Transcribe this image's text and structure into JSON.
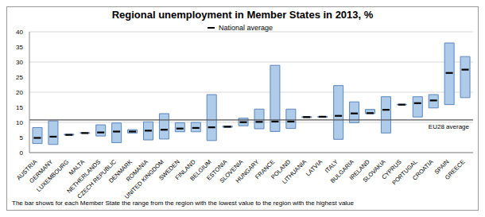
{
  "chart_data": {
    "type": "range_bar",
    "title": "Regional unemployment in Member States in 2013, %",
    "note": "The bar shows for each Member State the range from the region with the lowest value to the region with the highest value",
    "categories": [
      "AUSTRIA",
      "GERMANY",
      "LUXEMBOURG",
      "MALTA",
      "NETHERLANDS",
      "CZECH REPUBLIC",
      "DENMARK",
      "ROMANIA",
      "UNITED KINGDOM",
      "SWEDEN",
      "FINLAND",
      "BELGIUM",
      "ESTONIA",
      "SLOVENIA",
      "HUNGARY",
      "FRANCE",
      "POLAND",
      "LITHUANIA",
      "LATVIA",
      "ITALY",
      "BULGARIA",
      "IRELAND",
      "SLOVAKIA",
      "CYPRUS",
      "PORTUGAL",
      "CROATIA",
      "SPAIN",
      "GREECE"
    ],
    "low": [
      3.0,
      2.7,
      5.8,
      6.4,
      5.5,
      3.3,
      6.5,
      4.2,
      4.5,
      6.9,
      6.9,
      4.0,
      8.4,
      8.9,
      7.9,
      7.0,
      8.0,
      11.6,
      11.7,
      4.4,
      9.9,
      12.9,
      6.5,
      15.8,
      11.8,
      14.8,
      15.9,
      18.2
    ],
    "high": [
      8.3,
      10.5,
      6.1,
      6.6,
      9.2,
      9.8,
      7.6,
      10.2,
      12.9,
      9.9,
      10.0,
      19.2,
      8.8,
      11.4,
      14.4,
      28.9,
      14.4,
      11.9,
      12.0,
      22.2,
      16.8,
      14.3,
      18.5,
      16.0,
      18.5,
      19.2,
      36.3,
      31.8
    ],
    "color": "#aecbea",
    "series": [
      {
        "name": "National average",
        "type": "marker",
        "marker": "dash",
        "color": "#000000",
        "values": [
          4.9,
          5.3,
          5.9,
          6.5,
          6.7,
          7.0,
          7.0,
          7.3,
          7.6,
          8.0,
          8.2,
          8.4,
          8.6,
          10.1,
          10.2,
          10.3,
          10.3,
          11.8,
          11.9,
          12.2,
          13.0,
          13.1,
          14.2,
          15.9,
          16.4,
          17.3,
          26.4,
          27.5
        ]
      }
    ],
    "reference_lines": [
      {
        "label": "EU28 average",
        "value": 10.8,
        "color": "#555555"
      }
    ],
    "ylim": [
      0,
      40
    ],
    "yticks": [
      0,
      5,
      10,
      15,
      20,
      25,
      30,
      35,
      40
    ],
    "grid": true,
    "legend": "top"
  }
}
